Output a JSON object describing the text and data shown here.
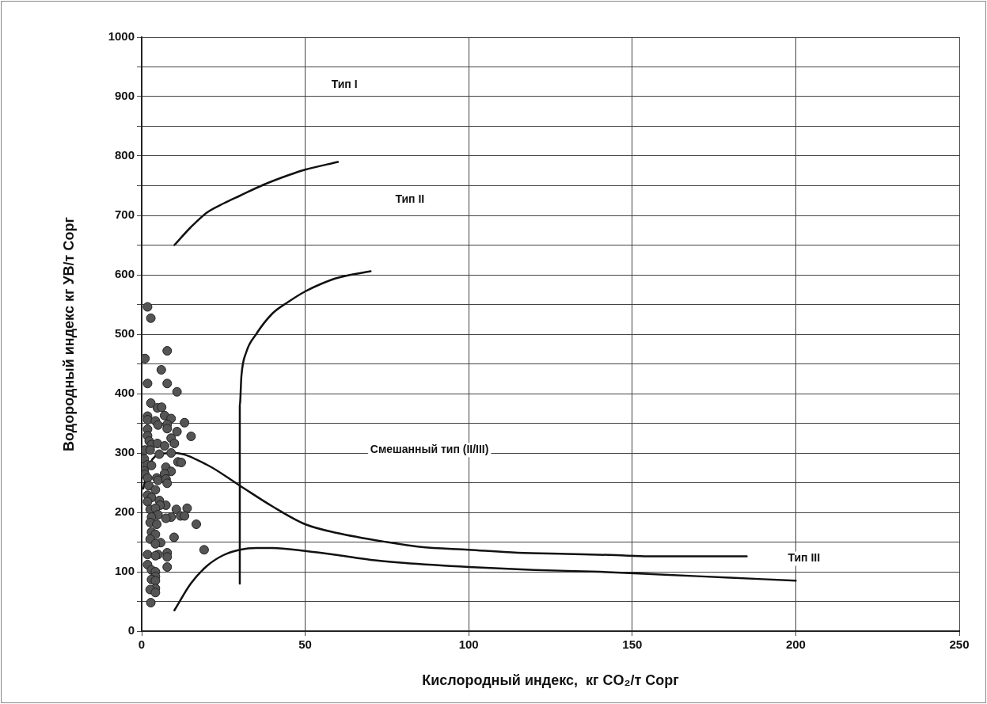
{
  "chart_data": {
    "type": "scatter",
    "xlabel": "Кислородный индекс,  кг CO₂/т Сорг",
    "ylabel": "Водородный индекс кг УВ/т Сорг",
    "xlim": [
      0,
      250
    ],
    "ylim": [
      0,
      1000
    ],
    "xticks": [
      0,
      50,
      100,
      150,
      200,
      250
    ],
    "yticks": [
      0,
      {
        "value": 50,
        "label": null
      },
      100,
      {
        "value": 150,
        "label": null
      },
      200,
      {
        "value": 250,
        "label": null
      },
      300,
      {
        "value": 350,
        "label": null
      },
      400,
      {
        "value": 450,
        "label": null
      },
      500,
      {
        "value": 550,
        "label": null
      },
      600,
      {
        "value": 650,
        "label": null
      },
      700,
      {
        "value": 750,
        "label": null
      },
      800,
      {
        "value": 850,
        "label": null
      },
      900,
      {
        "value": 950,
        "label": null
      },
      1000
    ],
    "grid": true,
    "annotations": [
      "Тип I",
      "Тип II",
      "Смешанный тип (II/III)",
      "Тип III"
    ],
    "series": [
      {
        "color": "#555555",
        "marker": "circle",
        "x": [
          1.8,
          2.8,
          7.8,
          1,
          6,
          1.8,
          7.8,
          10.8,
          2.8,
          4.8,
          6.1,
          7,
          9,
          1.8,
          1.8,
          4.2,
          5,
          7.8,
          7.8,
          13.1,
          15.1,
          10.8,
          1.8,
          1.8,
          2.3,
          3,
          4.8,
          7,
          9,
          10,
          1,
          2.6,
          5.4,
          9,
          11.1,
          12.1,
          0.8,
          1.8,
          3,
          7.4,
          9,
          7,
          0.8,
          1,
          4.6,
          7.4,
          1.8,
          5,
          7.4,
          7.8,
          2.2,
          4.2,
          1.8,
          3,
          5.4,
          1.8,
          7.4,
          5.6,
          2.6,
          4.2,
          10.6,
          13.9,
          5,
          3,
          9,
          11.9,
          13.1,
          7.4,
          2.6,
          4.6,
          16.7,
          3,
          4.2,
          9.9,
          2.6,
          5.8,
          4.2,
          19.1,
          1.8,
          5,
          4.2,
          7.8,
          7.8,
          7.8,
          1.8,
          3,
          4.2,
          4.2,
          3,
          4.2,
          4.2,
          2.6,
          4.2,
          2.8
        ],
        "values": [
          546,
          527,
          472,
          459,
          440,
          417,
          417,
          403,
          384,
          376,
          377,
          363,
          358,
          362,
          356,
          354,
          347,
          348,
          341,
          351,
          328,
          336,
          340,
          329,
          320,
          314,
          316,
          312,
          325,
          316,
          305,
          305,
          298,
          300,
          285,
          284,
          290,
          280,
          279,
          276,
          269,
          265,
          270,
          264,
          258,
          256,
          258,
          254,
          256,
          249,
          245,
          238,
          229,
          225,
          220,
          218,
          212,
          212,
          205,
          207,
          205,
          207,
          196,
          192,
          192,
          194,
          194,
          190,
          183,
          180,
          180,
          167,
          163,
          158,
          155,
          149,
          147,
          137,
          129,
          129,
          127,
          132,
          125,
          108,
          112,
          103,
          100,
          92,
          87,
          85,
          72,
          70,
          65,
          48
        ]
      },
      {
        "type": "line",
        "color": "#111111",
        "marker": "none",
        "line_style": "solid",
        "x": [
          10,
          15,
          20,
          25,
          30,
          37,
          45,
          50,
          60
        ],
        "values": [
          650,
          680,
          705,
          720,
          733,
          751,
          768,
          777,
          790
        ]
      },
      {
        "type": "line",
        "color": "#111111",
        "marker": "none",
        "line_style": "solid",
        "x": [
          30,
          30,
          30.5,
          32,
          35,
          40,
          45,
          50,
          55,
          60,
          70
        ],
        "values": [
          80,
          380,
          430,
          470,
          500,
          535,
          555,
          572,
          585,
          595,
          606
        ]
      },
      {
        "type": "line",
        "color": "#111111",
        "marker": "none",
        "line_style": "solid",
        "x": [
          0.5,
          2,
          5,
          10,
          20,
          30,
          40,
          50,
          60,
          75,
          85,
          100,
          115,
          130,
          145,
          155,
          185
        ],
        "values": [
          240,
          275,
          297,
          300,
          280,
          245,
          210,
          180,
          165,
          150,
          142,
          137,
          132,
          130,
          128,
          126,
          126
        ]
      },
      {
        "type": "line",
        "color": "#111111",
        "marker": "none",
        "line_style": "solid",
        "x": [
          10,
          15,
          20,
          25,
          30,
          35,
          40,
          50,
          60,
          70,
          80,
          100,
          120,
          140,
          160,
          180,
          200
        ],
        "values": [
          35,
          80,
          110,
          128,
          137,
          140,
          140,
          135,
          128,
          120,
          115,
          108,
          103,
          100,
          95,
          90,
          85
        ]
      }
    ]
  }
}
